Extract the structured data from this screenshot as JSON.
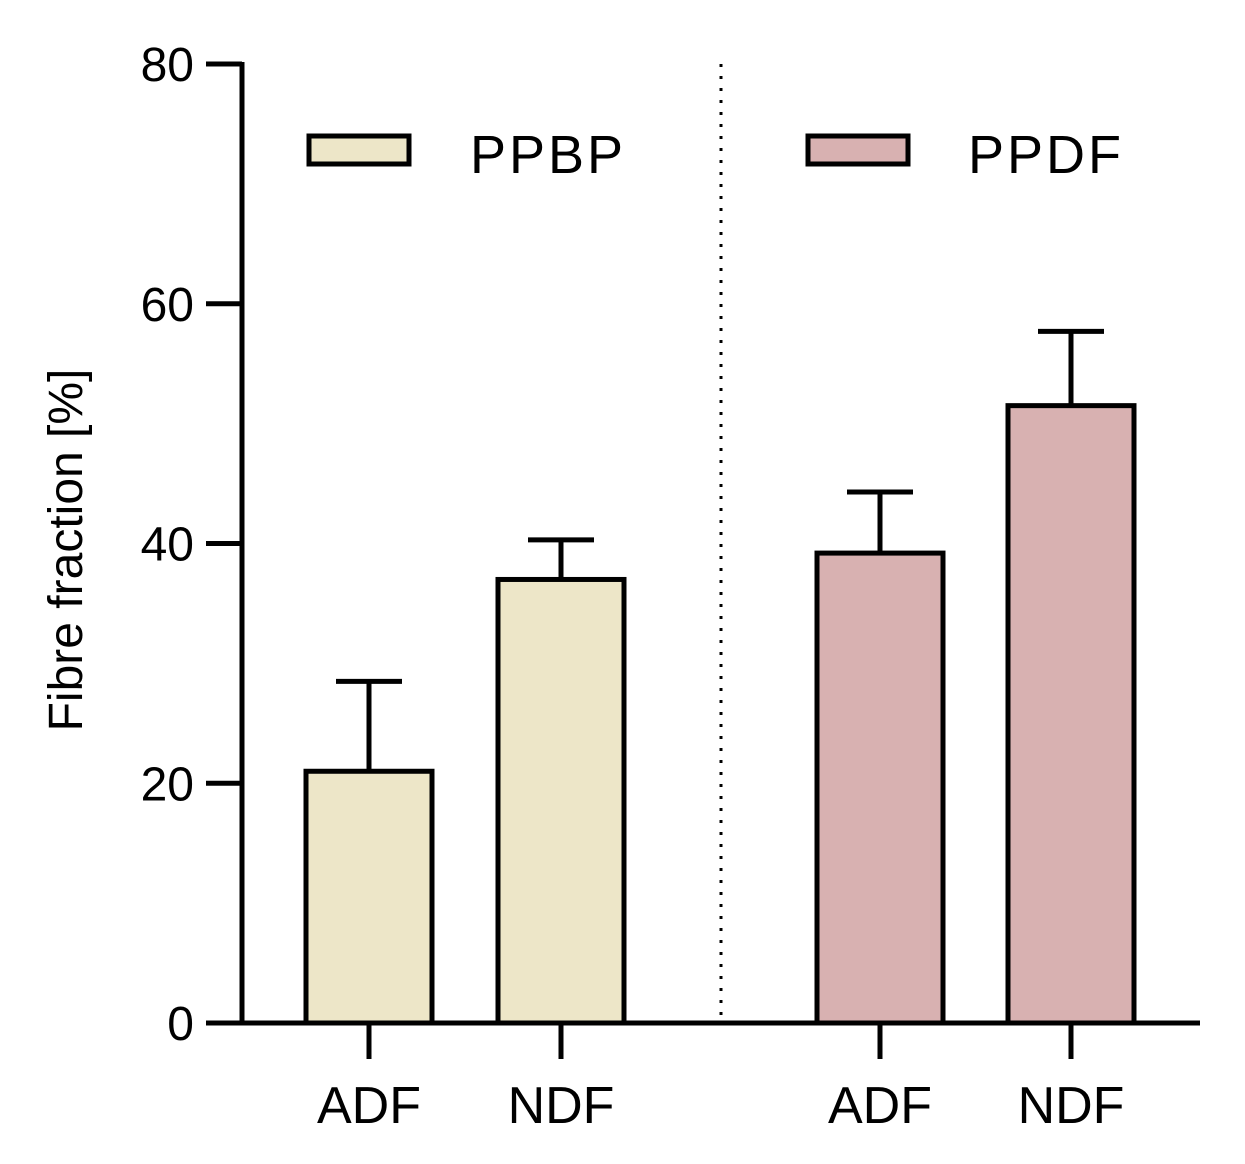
{
  "chart_data": {
    "type": "bar",
    "ylabel": "Fibre fraction [%]",
    "ylim": [
      0,
      80
    ],
    "yticks": [
      0,
      20,
      40,
      60,
      80
    ],
    "grid": false,
    "legend_position": "top",
    "groups": [
      {
        "name": "PPBP",
        "color": "#ede6c8",
        "categories": [
          "ADF",
          "NDF"
        ],
        "values": [
          21,
          37
        ],
        "errors": [
          7.5,
          3.3
        ]
      },
      {
        "name": "PPDF",
        "color": "#d8b1b1",
        "categories": [
          "ADF",
          "NDF"
        ],
        "values": [
          39.2,
          51.5
        ],
        "errors": [
          5.1,
          6.2
        ]
      }
    ],
    "separator": "dotted vertical line between groups"
  }
}
